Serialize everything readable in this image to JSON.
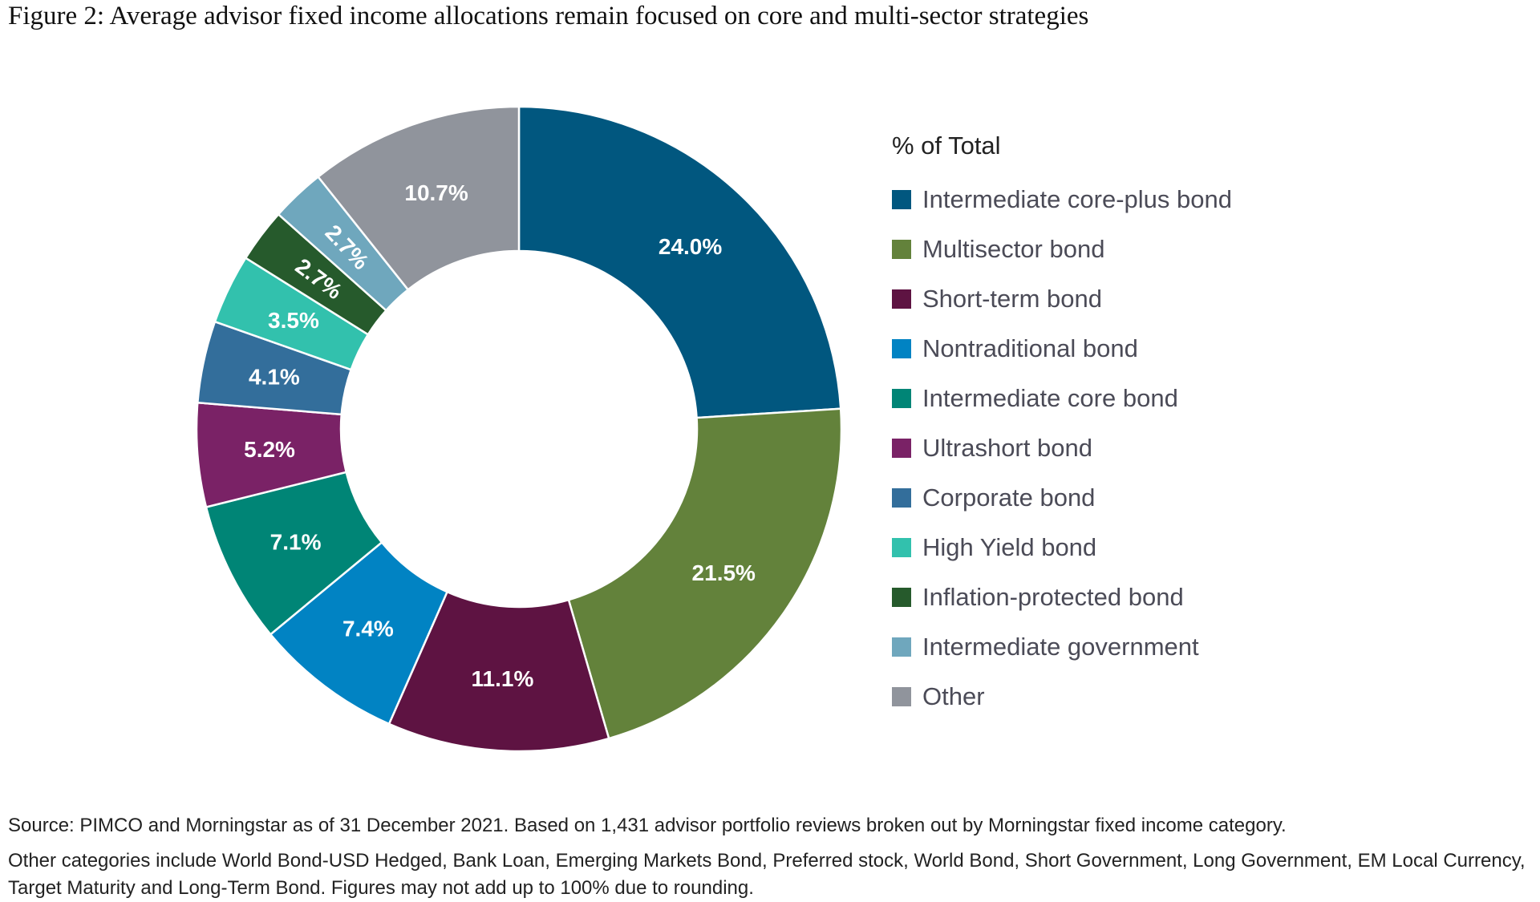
{
  "title": "Figure 2: Average advisor fixed income allocations remain focused on core and multi-sector strategies",
  "chart_data": {
    "type": "pie",
    "style": "donut",
    "legend_title": "% of Total",
    "legend_position": "right",
    "series": [
      {
        "name": "Intermediate core-plus bond",
        "value": 24.0,
        "label": "24.0%",
        "color": "#01577f"
      },
      {
        "name": "Multisector bond",
        "value": 21.5,
        "label": "21.5%",
        "color": "#63823b"
      },
      {
        "name": "Short-term bond",
        "value": 11.1,
        "label": "11.1%",
        "color": "#5e1342"
      },
      {
        "name": "Nontraditional bond",
        "value": 7.4,
        "label": "7.4%",
        "color": "#0183c3"
      },
      {
        "name": "Intermediate core bond",
        "value": 7.1,
        "label": "7.1%",
        "color": "#008576"
      },
      {
        "name": "Ultrashort bond",
        "value": 5.2,
        "label": "5.2%",
        "color": "#7a2266"
      },
      {
        "name": "Corporate bond",
        "value": 4.1,
        "label": "4.1%",
        "color": "#336e9b"
      },
      {
        "name": "High Yield bond",
        "value": 3.5,
        "label": "3.5%",
        "color": "#32c1ad"
      },
      {
        "name": "Inflation-protected bond",
        "value": 2.7,
        "label": "2.7%",
        "color": "#265a2c"
      },
      {
        "name": "Intermediate government",
        "value": 2.7,
        "label": "2.7%",
        "color": "#6fa7bd"
      },
      {
        "name": "Other",
        "value": 10.7,
        "label": "10.7%",
        "color": "#90949c"
      }
    ]
  },
  "footnotes": {
    "source": "Source: PIMCO and Morningstar as of 31 December 2021. Based on 1,431 advisor portfolio reviews broken out by Morningstar fixed income category.",
    "other": "Other categories include World Bond-USD Hedged, Bank Loan, Emerging Markets Bond, Preferred stock, World Bond, Short Government, Long Government, EM Local Currency, Target Maturity and Long-Term Bond. Figures may not add up to 100% due to rounding."
  }
}
